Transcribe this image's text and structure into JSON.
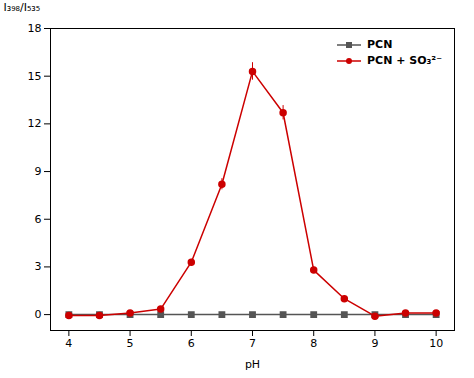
{
  "chart_data": {
    "type": "line",
    "xlabel": "pH",
    "ylabel": "I₃₉₈/I₅₃₅",
    "x": [
      4,
      4.5,
      5,
      5.5,
      6,
      6.5,
      7,
      7.5,
      8,
      8.5,
      9,
      9.5,
      10
    ],
    "series": [
      {
        "name": "PCN",
        "color": "#555555",
        "marker": "square",
        "values": [
          0,
          0,
          0,
          0,
          0,
          0,
          0,
          0,
          0,
          0,
          0,
          0,
          0
        ],
        "errors": [
          0.04,
          0.04,
          0.04,
          0.04,
          0.04,
          0.04,
          0.04,
          0.04,
          0.04,
          0.04,
          0.04,
          0.04,
          0.04
        ]
      },
      {
        "name": "PCN + SO₃²⁻",
        "color": "#cc0000",
        "marker": "circle",
        "values": [
          -0.05,
          -0.05,
          0.1,
          0.35,
          3.3,
          8.2,
          15.3,
          12.7,
          2.8,
          1.0,
          -0.1,
          0.1,
          0.1
        ],
        "errors": [
          0.08,
          0.08,
          0.08,
          0.12,
          0.18,
          0.35,
          0.55,
          0.45,
          0.2,
          0.12,
          0.08,
          0.08,
          0.08
        ]
      }
    ],
    "xlim": [
      3.7,
      10.3
    ],
    "xticks": [
      4,
      5,
      6,
      7,
      8,
      9,
      10
    ],
    "ylim": [
      -1,
      18
    ],
    "yticks": [
      0,
      3,
      6,
      9,
      12,
      15,
      18
    ],
    "grid": false,
    "legend": "upper right"
  }
}
